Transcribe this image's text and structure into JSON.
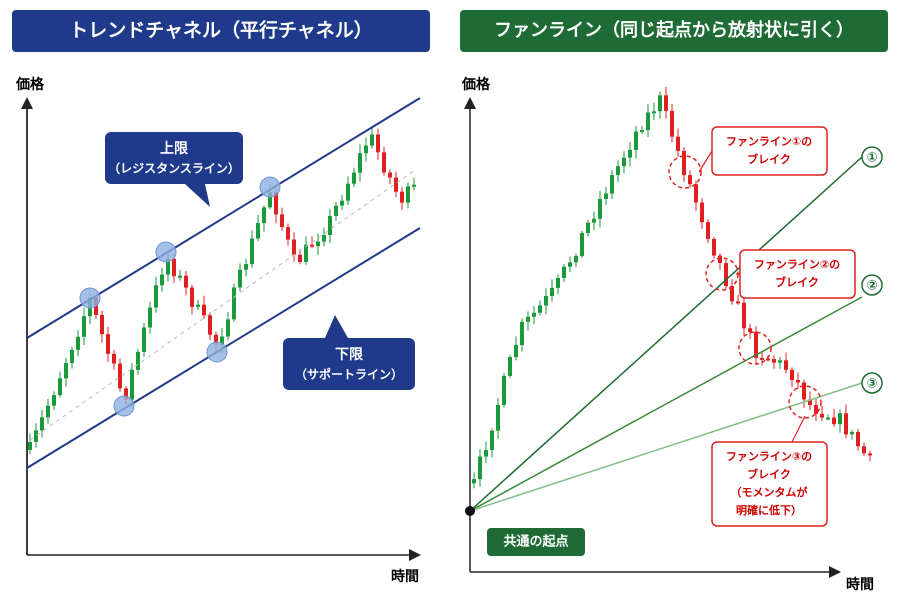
{
  "left": {
    "title": "トレンドチャネル（平行チャネル）",
    "y_label": "価格",
    "x_label": "時間",
    "upper": {
      "title": "上限",
      "subtitle": "（レジスタンスライン）"
    },
    "lower": {
      "title": "下限",
      "subtitle": "（サポートライン）"
    }
  },
  "right": {
    "title": "ファンライン（同じ起点から放射状に引く）",
    "y_label": "価格",
    "x_label": "時間",
    "markers": [
      "①",
      "②",
      "③"
    ],
    "callouts": [
      [
        "ファンライン①の",
        "ブレイク"
      ],
      [
        "ファンライン②の",
        "ブレイク"
      ],
      [
        "ファンライン③の",
        "ブレイク",
        "（モメンタムが",
        "明確に低下）"
      ]
    ],
    "origin": "共通の起点"
  }
}
